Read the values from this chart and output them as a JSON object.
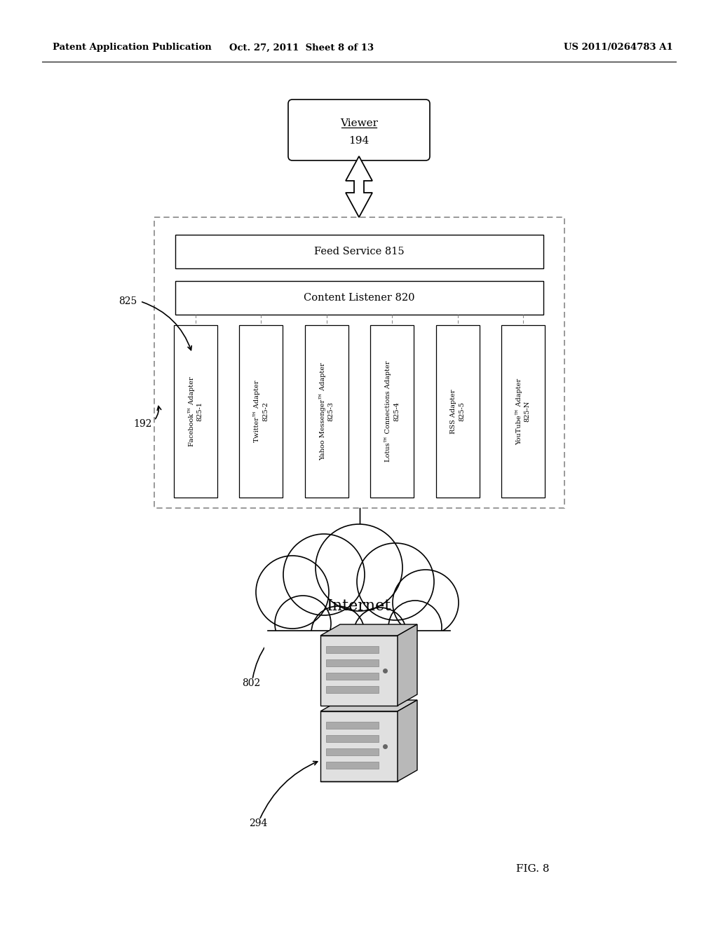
{
  "bg_color": "#ffffff",
  "header_left": "Patent Application Publication",
  "header_center": "Oct. 27, 2011  Sheet 8 of 13",
  "header_right": "US 2011/0264783 A1",
  "fig_label": "FIG. 8",
  "feed_service_label": "Feed Service 815",
  "content_listener_label": "Content Listener 820",
  "adapters": [
    "Facebook™ Adapter\n825-1",
    "Twitter™ Adapter\n825-2",
    "Yahoo Messenger™ Adapter\n825-3",
    "Lotus™ Connections Adapter\n825-4",
    "RSS Adapter\n825-5",
    "YouTube™ Adapter\n825-N"
  ],
  "label_825": "825",
  "label_192": "192",
  "label_802": "802",
  "label_294": "294",
  "internet_label": "Internet",
  "viewer_text": "Viewer",
  "viewer_num": "194"
}
